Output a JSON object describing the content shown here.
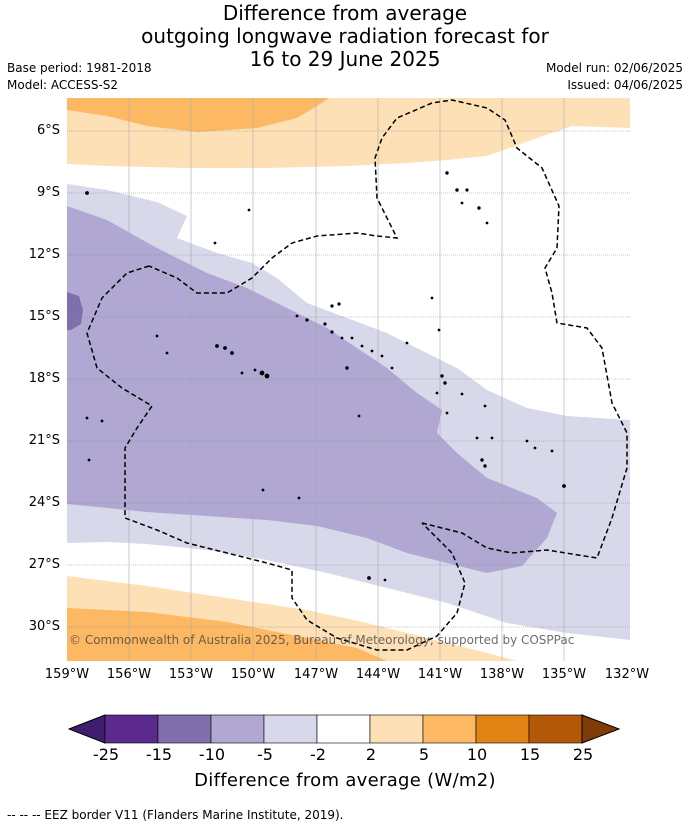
{
  "title": {
    "line1": "Difference from average",
    "line2": "outgoing longwave radiation forecast for",
    "line3": "16 to 29 June 2025"
  },
  "meta": {
    "base_period": "Base period: 1981-2018",
    "model": "Model: ACCESS-S2",
    "model_run": "Model run: 02/06/2025",
    "issued": "Issued: 04/06/2025"
  },
  "map": {
    "lat_labels": [
      "6°S",
      "9°S",
      "12°S",
      "15°S",
      "18°S",
      "21°S",
      "24°S",
      "27°S",
      "30°S"
    ],
    "lon_labels": [
      "159°W",
      "156°W",
      "153°W",
      "150°W",
      "147°W",
      "144°W",
      "141°W",
      "138°W",
      "135°W",
      "132°W"
    ],
    "copyright": "© Commonwealth of Australia 2025, Bureau of Meteorology, supported by COSPPac"
  },
  "colorbar": {
    "ticks": [
      "-25",
      "-15",
      "-10",
      "-5",
      "-2",
      "2",
      "5",
      "10",
      "15",
      "25"
    ],
    "colors": [
      "#3f1e6e",
      "#5b2a8c",
      "#7f70ad",
      "#b0a8d2",
      "#d7d8ea",
      "#ffffff",
      "#fde0b5",
      "#fdb863",
      "#e08214",
      "#b35806",
      "#7f3b08"
    ],
    "label": "Difference from average (W/m2)"
  },
  "legend_note": "--  --  -- EEZ border V11 (Flanders Marine Institute, 2019)."
}
